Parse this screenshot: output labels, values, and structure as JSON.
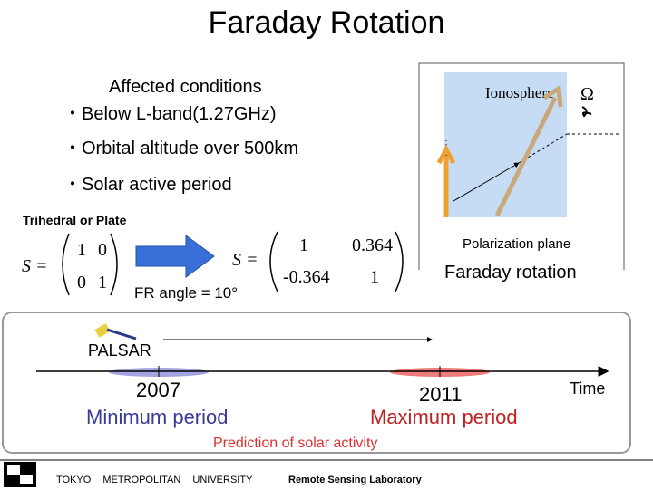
{
  "title": "Faraday Rotation",
  "conditions": {
    "heading": "Affected conditions",
    "items": [
      "・Below L-band(1.27GHz)",
      "・Orbital altitude over 500km",
      "・Solar active period"
    ]
  },
  "matrix_label": "Trihedral or Plate",
  "matrix_before": {
    "symbol": "S =",
    "rows": [
      [
        1,
        0
      ],
      [
        0,
        1
      ]
    ]
  },
  "matrix_after": {
    "symbol": "S =",
    "rows": [
      [
        1,
        0.364
      ],
      [
        -0.364,
        1
      ]
    ]
  },
  "fr_angle": "FR angle = 10°",
  "diagram": {
    "ionosphere": "Ionosphere",
    "omega": "Ω",
    "polarization": "Polarization plane",
    "caption": "Faraday rotation"
  },
  "timeline": {
    "satellite": "PALSAR",
    "axis": "Time",
    "events": [
      {
        "year": "2007",
        "label": "Minimum period"
      },
      {
        "year": "2011",
        "label": "Maximum period"
      }
    ],
    "caption": "Prediction of solar activity"
  },
  "footer": {
    "university": "TOKYO METROPOLITAN UNIVERSITY",
    "lab": "Remote Sensing Laboratory"
  }
}
